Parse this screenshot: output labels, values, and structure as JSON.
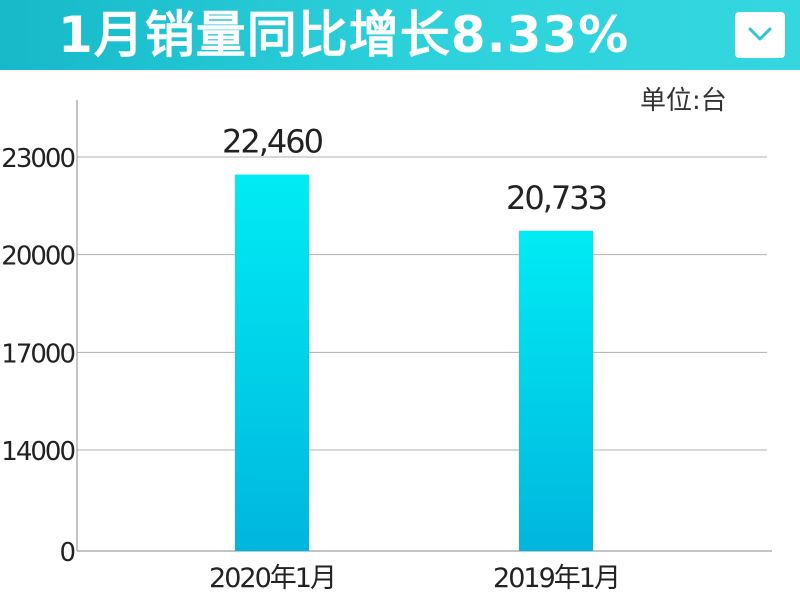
{
  "header": {
    "title": "1月销量同比增长8.33%",
    "dropdown_icon": "chevron-down-icon"
  },
  "unit_label": "单位:台",
  "colors": {
    "banner_start": "#17b9c9",
    "banner_end": "#34d7e0",
    "bar_top": "#00ecf4",
    "bar_bottom": "#00b6de",
    "gridline": "#b0b0b0",
    "axis": "#888888"
  },
  "chart_data": {
    "type": "bar",
    "categories": [
      "2020年1月",
      "2019年1月"
    ],
    "values": [
      22460,
      20733
    ],
    "value_labels": [
      "22,460",
      "20,733"
    ],
    "y_ticks": [
      0,
      14000,
      17000,
      20000,
      23000
    ],
    "y_tick_labels": [
      "0",
      "14000",
      "17000",
      "20000",
      "23000"
    ],
    "axis_break": true,
    "grid": true,
    "legend": "none",
    "xlabel": "",
    "ylabel": ""
  }
}
